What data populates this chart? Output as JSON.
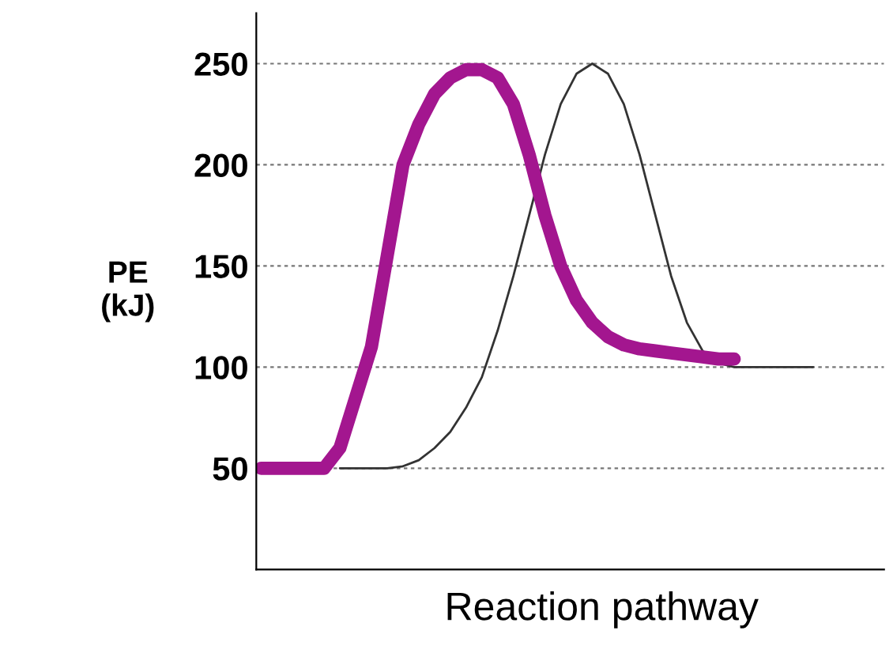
{
  "chart_data": {
    "type": "line",
    "xlabel": "Reaction pathway",
    "ylabel": "PE\n(kJ)",
    "categories": [
      null,
      null,
      null,
      null,
      null,
      null,
      null,
      null,
      null,
      null,
      null,
      null,
      null,
      null,
      null,
      null,
      null,
      null,
      null,
      null,
      null,
      null,
      null,
      null,
      null,
      null,
      null,
      null,
      null,
      null,
      null,
      null,
      null,
      null,
      null,
      null
    ],
    "series": [
      {
        "color": "#333333",
        "values": [
          null,
          null,
          null,
          null,
          null,
          50,
          50,
          50,
          50,
          51,
          54,
          60,
          68,
          80,
          95,
          118,
          145,
          175,
          205,
          230,
          245,
          250,
          245,
          230,
          205,
          175,
          145,
          122,
          108,
          102,
          100,
          100,
          100,
          100,
          100,
          100
        ]
      },
      {
        "color": "#a3168f",
        "values": [
          50,
          50,
          50,
          50,
          50,
          60,
          85,
          110,
          155,
          200,
          220,
          235,
          243,
          247,
          247,
          243,
          230,
          205,
          175,
          150,
          133,
          122,
          115,
          111,
          109,
          108,
          107,
          106,
          105,
          104,
          104,
          null,
          null,
          null,
          null,
          null
        ]
      }
    ],
    "ylim": [
      0,
      275
    ],
    "yticks": [
      50,
      100,
      150,
      200,
      250
    ],
    "grid": "y",
    "tick_labels": "y",
    "line_style": "solid",
    "marker": "none"
  }
}
